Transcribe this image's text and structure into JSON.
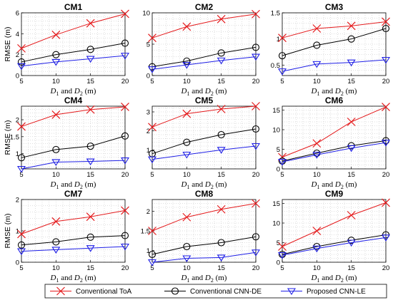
{
  "legend": [
    {
      "name": "Conventional ToA",
      "color": "#e41a1c",
      "marker": "x-icon"
    },
    {
      "name": "Conventional CNN-DE",
      "color": "#000000",
      "marker": "circle-icon"
    },
    {
      "name": "Proposed CNN-LE",
      "color": "#1f1fe6",
      "marker": "triangle-down-icon"
    }
  ],
  "chart_data": [
    {
      "type": "line",
      "title": "CM1",
      "xlabel_prefix": "D",
      "xlabel_sub1": "1",
      "xlabel_mid": " and ",
      "xlabel_sub2": "2",
      "xlabel_unit": " (m)",
      "ylabel": "RMSE (m)",
      "x": [
        5,
        10,
        15,
        20
      ],
      "xticks": [
        5,
        10,
        15,
        20
      ],
      "xlim": [
        5,
        20
      ],
      "ylim": [
        0,
        6
      ],
      "yticks": [
        0,
        2,
        4,
        6
      ],
      "grid": true,
      "series": [
        {
          "name": "Conventional ToA",
          "values": [
            2.6,
            3.9,
            5.0,
            5.9
          ]
        },
        {
          "name": "Conventional CNN-DE",
          "values": [
            1.3,
            2.0,
            2.5,
            3.1
          ]
        },
        {
          "name": "Proposed CNN-LE",
          "values": [
            0.9,
            1.3,
            1.6,
            1.9
          ]
        }
      ]
    },
    {
      "type": "line",
      "title": "CM2",
      "xlabel_prefix": "D",
      "xlabel_sub1": "1",
      "xlabel_mid": " and ",
      "xlabel_sub2": "2",
      "xlabel_unit": " (m)",
      "ylabel": "",
      "x": [
        5,
        10,
        15,
        20
      ],
      "xticks": [
        5,
        10,
        15,
        20
      ],
      "xlim": [
        5,
        20
      ],
      "ylim": [
        0,
        10
      ],
      "yticks": [
        0,
        5,
        10
      ],
      "grid": true,
      "series": [
        {
          "name": "Conventional ToA",
          "values": [
            6.0,
            7.8,
            9.0,
            9.8
          ]
        },
        {
          "name": "Conventional CNN-DE",
          "values": [
            1.4,
            2.3,
            3.6,
            4.5
          ]
        },
        {
          "name": "Proposed CNN-LE",
          "values": [
            1.0,
            1.7,
            2.4,
            3.0
          ]
        }
      ]
    },
    {
      "type": "line",
      "title": "CM3",
      "xlabel_prefix": "D",
      "xlabel_sub1": "1",
      "xlabel_mid": " and ",
      "xlabel_sub2": "2",
      "xlabel_unit": " (m)",
      "ylabel": "",
      "x": [
        5,
        10,
        15,
        20
      ],
      "xticks": [
        5,
        10,
        15,
        20
      ],
      "xlim": [
        5,
        20
      ],
      "ylim": [
        0.3,
        1.5
      ],
      "yticks": [
        0.5,
        1,
        1.5
      ],
      "ytick_labels": [
        "0.5",
        "1",
        "1.5"
      ],
      "grid": true,
      "series": [
        {
          "name": "Conventional ToA",
          "values": [
            1.02,
            1.2,
            1.25,
            1.33
          ]
        },
        {
          "name": "Conventional CNN-DE",
          "values": [
            0.68,
            0.88,
            1.0,
            1.2
          ]
        },
        {
          "name": "Proposed CNN-LE",
          "values": [
            0.38,
            0.52,
            0.55,
            0.6
          ]
        }
      ]
    },
    {
      "type": "line",
      "title": "CM4",
      "xlabel_prefix": "D",
      "xlabel_sub1": "1",
      "xlabel_mid": " and ",
      "xlabel_sub2": "2",
      "xlabel_unit": " (m)",
      "ylabel": "RMSE (m)",
      "x": [
        5,
        10,
        15,
        20
      ],
      "xticks": [
        5,
        10,
        15,
        20
      ],
      "xlim": [
        5,
        20
      ],
      "ylim": [
        0.55,
        2.4
      ],
      "yticks": [
        1,
        1.5,
        2
      ],
      "ytick_labels": [
        "1",
        "1.5",
        "2"
      ],
      "grid": true,
      "series": [
        {
          "name": "Conventional ToA",
          "values": [
            1.8,
            2.15,
            2.3,
            2.38
          ]
        },
        {
          "name": "Conventional CNN-DE",
          "values": [
            0.88,
            1.12,
            1.22,
            1.52
          ]
        },
        {
          "name": "Proposed CNN-LE",
          "values": [
            0.55,
            0.75,
            0.77,
            0.8
          ]
        }
      ]
    },
    {
      "type": "line",
      "title": "CM5",
      "xlabel_prefix": "D",
      "xlabel_sub1": "1",
      "xlabel_mid": " and ",
      "xlabel_sub2": "2",
      "xlabel_unit": " (m)",
      "ylabel": "",
      "x": [
        5,
        10,
        15,
        20
      ],
      "xticks": [
        5,
        10,
        15,
        20
      ],
      "xlim": [
        5,
        20
      ],
      "ylim": [
        0,
        3.3
      ],
      "yticks": [
        1,
        2,
        3
      ],
      "grid": true,
      "series": [
        {
          "name": "Conventional ToA",
          "values": [
            2.2,
            2.9,
            3.15,
            3.3
          ]
        },
        {
          "name": "Conventional CNN-DE",
          "values": [
            0.8,
            1.4,
            1.8,
            2.1
          ]
        },
        {
          "name": "Proposed CNN-LE",
          "values": [
            0.5,
            0.75,
            1.0,
            1.2
          ]
        }
      ]
    },
    {
      "type": "line",
      "title": "CM6",
      "xlabel_prefix": "D",
      "xlabel_sub1": "1",
      "xlabel_mid": " and ",
      "xlabel_sub2": "2",
      "xlabel_unit": " (m)",
      "ylabel": "",
      "x": [
        5,
        10,
        15,
        20
      ],
      "xticks": [
        5,
        10,
        15,
        20
      ],
      "xlim": [
        5,
        20
      ],
      "ylim": [
        0,
        16
      ],
      "yticks": [
        0,
        5,
        10,
        15
      ],
      "grid": true,
      "series": [
        {
          "name": "Conventional ToA",
          "values": [
            3.0,
            6.5,
            12.0,
            15.8
          ]
        },
        {
          "name": "Conventional CNN-DE",
          "values": [
            2.0,
            4.0,
            5.9,
            7.2
          ]
        },
        {
          "name": "Proposed CNN-LE",
          "values": [
            1.8,
            3.6,
            5.3,
            6.7
          ]
        }
      ]
    },
    {
      "type": "line",
      "title": "CM7",
      "xlabel_prefix": "D",
      "xlabel_sub1": "1",
      "xlabel_mid": " and ",
      "xlabel_sub2": "2",
      "xlabel_unit": " (m)",
      "ylabel": "RMSE (m)",
      "x": [
        5,
        10,
        15,
        20
      ],
      "xticks": [
        5,
        10,
        15,
        20
      ],
      "xlim": [
        5,
        20
      ],
      "ylim": [
        0,
        2
      ],
      "yticks": [
        0,
        1,
        2
      ],
      "grid": true,
      "series": [
        {
          "name": "Conventional ToA",
          "values": [
            0.9,
            1.3,
            1.45,
            1.65
          ]
        },
        {
          "name": "Conventional CNN-DE",
          "values": [
            0.55,
            0.65,
            0.8,
            0.85
          ]
        },
        {
          "name": "Proposed CNN-LE",
          "values": [
            0.35,
            0.4,
            0.45,
            0.5
          ]
        }
      ]
    },
    {
      "type": "line",
      "title": "CM8",
      "xlabel_prefix": "D",
      "xlabel_sub1": "1",
      "xlabel_mid": " and ",
      "xlabel_sub2": "2",
      "xlabel_unit": " (m)",
      "ylabel": "",
      "x": [
        5,
        10,
        15,
        20
      ],
      "xticks": [
        5,
        10,
        15,
        20
      ],
      "xlim": [
        5,
        20
      ],
      "ylim": [
        0.7,
        2.3
      ],
      "yticks": [
        1,
        1.5,
        2
      ],
      "ytick_labels": [
        "1",
        "1.5",
        "2"
      ],
      "grid": true,
      "series": [
        {
          "name": "Conventional ToA",
          "values": [
            1.5,
            1.85,
            2.05,
            2.2
          ]
        },
        {
          "name": "Conventional CNN-DE",
          "values": [
            0.9,
            1.1,
            1.2,
            1.35
          ]
        },
        {
          "name": "Proposed CNN-LE",
          "values": [
            0.7,
            0.8,
            0.82,
            0.95
          ]
        }
      ]
    },
    {
      "type": "line",
      "title": "CM9",
      "xlabel_prefix": "D",
      "xlabel_sub1": "1",
      "xlabel_mid": " and ",
      "xlabel_sub2": "2",
      "xlabel_unit": " (m)",
      "ylabel": "",
      "x": [
        5,
        10,
        15,
        20
      ],
      "xticks": [
        5,
        10,
        15,
        20
      ],
      "xlim": [
        5,
        20
      ],
      "ylim": [
        0,
        16
      ],
      "yticks": [
        0,
        5,
        10,
        15
      ],
      "grid": true,
      "series": [
        {
          "name": "Conventional ToA",
          "values": [
            4.0,
            8.0,
            12.0,
            15.2
          ]
        },
        {
          "name": "Conventional CNN-DE",
          "values": [
            2.0,
            4.0,
            5.6,
            7.0
          ]
        },
        {
          "name": "Proposed CNN-LE",
          "values": [
            1.8,
            3.5,
            5.0,
            6.3
          ]
        }
      ]
    }
  ]
}
